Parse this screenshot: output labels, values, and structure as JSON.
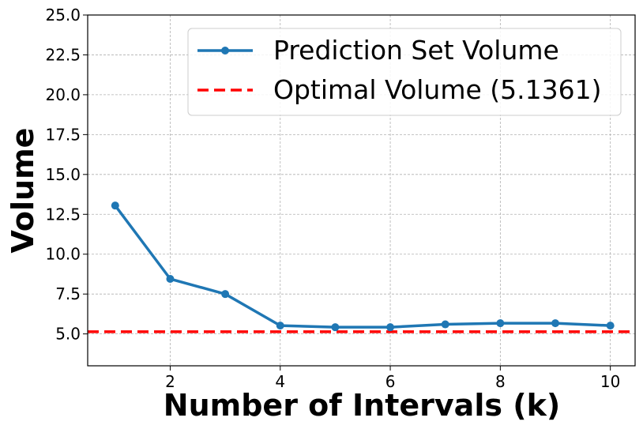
{
  "chart_data": {
    "type": "line",
    "xlabel": "Number of Intervals (k)",
    "ylabel": "Volume",
    "x": [
      1,
      2,
      3,
      4,
      5,
      6,
      7,
      8,
      9,
      10
    ],
    "xlim": [
      0.5,
      10.45
    ],
    "ylim": [
      3.0,
      25.0
    ],
    "xticks": [
      2,
      4,
      6,
      8,
      10
    ],
    "yticks": [
      5.0,
      7.5,
      10.0,
      12.5,
      15.0,
      17.5,
      20.0,
      22.5,
      25.0
    ],
    "ytick_labels": [
      "5.0",
      "7.5",
      "10.0",
      "12.5",
      "15.0",
      "17.5",
      "20.0",
      "22.5",
      "25.0"
    ],
    "grid": true,
    "legend_position": "top-right",
    "series": [
      {
        "name": "Prediction Set Volume",
        "color": "#1f77b4",
        "style": "solid-with-markers",
        "values": [
          13.05,
          8.45,
          7.5,
          5.52,
          5.42,
          5.42,
          5.6,
          5.67,
          5.67,
          5.52
        ]
      }
    ],
    "reference_lines": [
      {
        "name": "Optimal Volume (5.1361)",
        "color": "#ff0000",
        "style": "dashed",
        "y": 5.1361
      }
    ]
  }
}
